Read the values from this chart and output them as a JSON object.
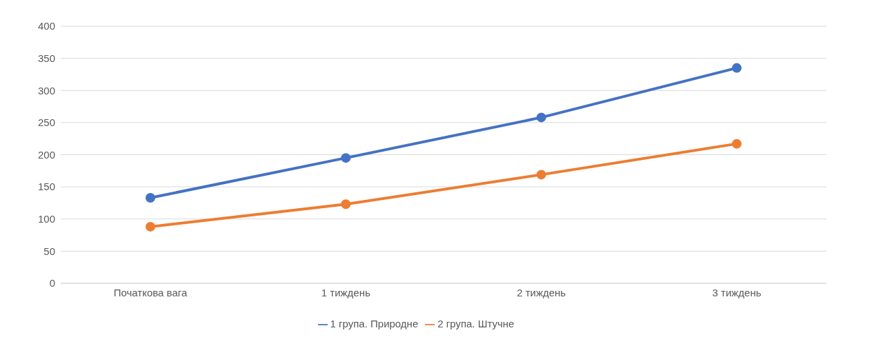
{
  "chart_data": {
    "type": "line",
    "categories": [
      "Початкова вага",
      "1 тиждень",
      "2 тиждень",
      "3 тиждень"
    ],
    "series": [
      {
        "name": "1 група. Природне",
        "color": "#4472c4",
        "values": [
          133,
          195,
          258,
          335
        ]
      },
      {
        "name": "2 група. Штучне",
        "color": "#ed7d31",
        "values": [
          88,
          123,
          169,
          217
        ]
      }
    ],
    "ylim": [
      0,
      400
    ],
    "yticks": [
      0,
      50,
      100,
      150,
      200,
      250,
      300,
      350,
      400
    ],
    "grid": "y",
    "legend": "bottom",
    "marker": "circle",
    "line_style": "solid"
  }
}
